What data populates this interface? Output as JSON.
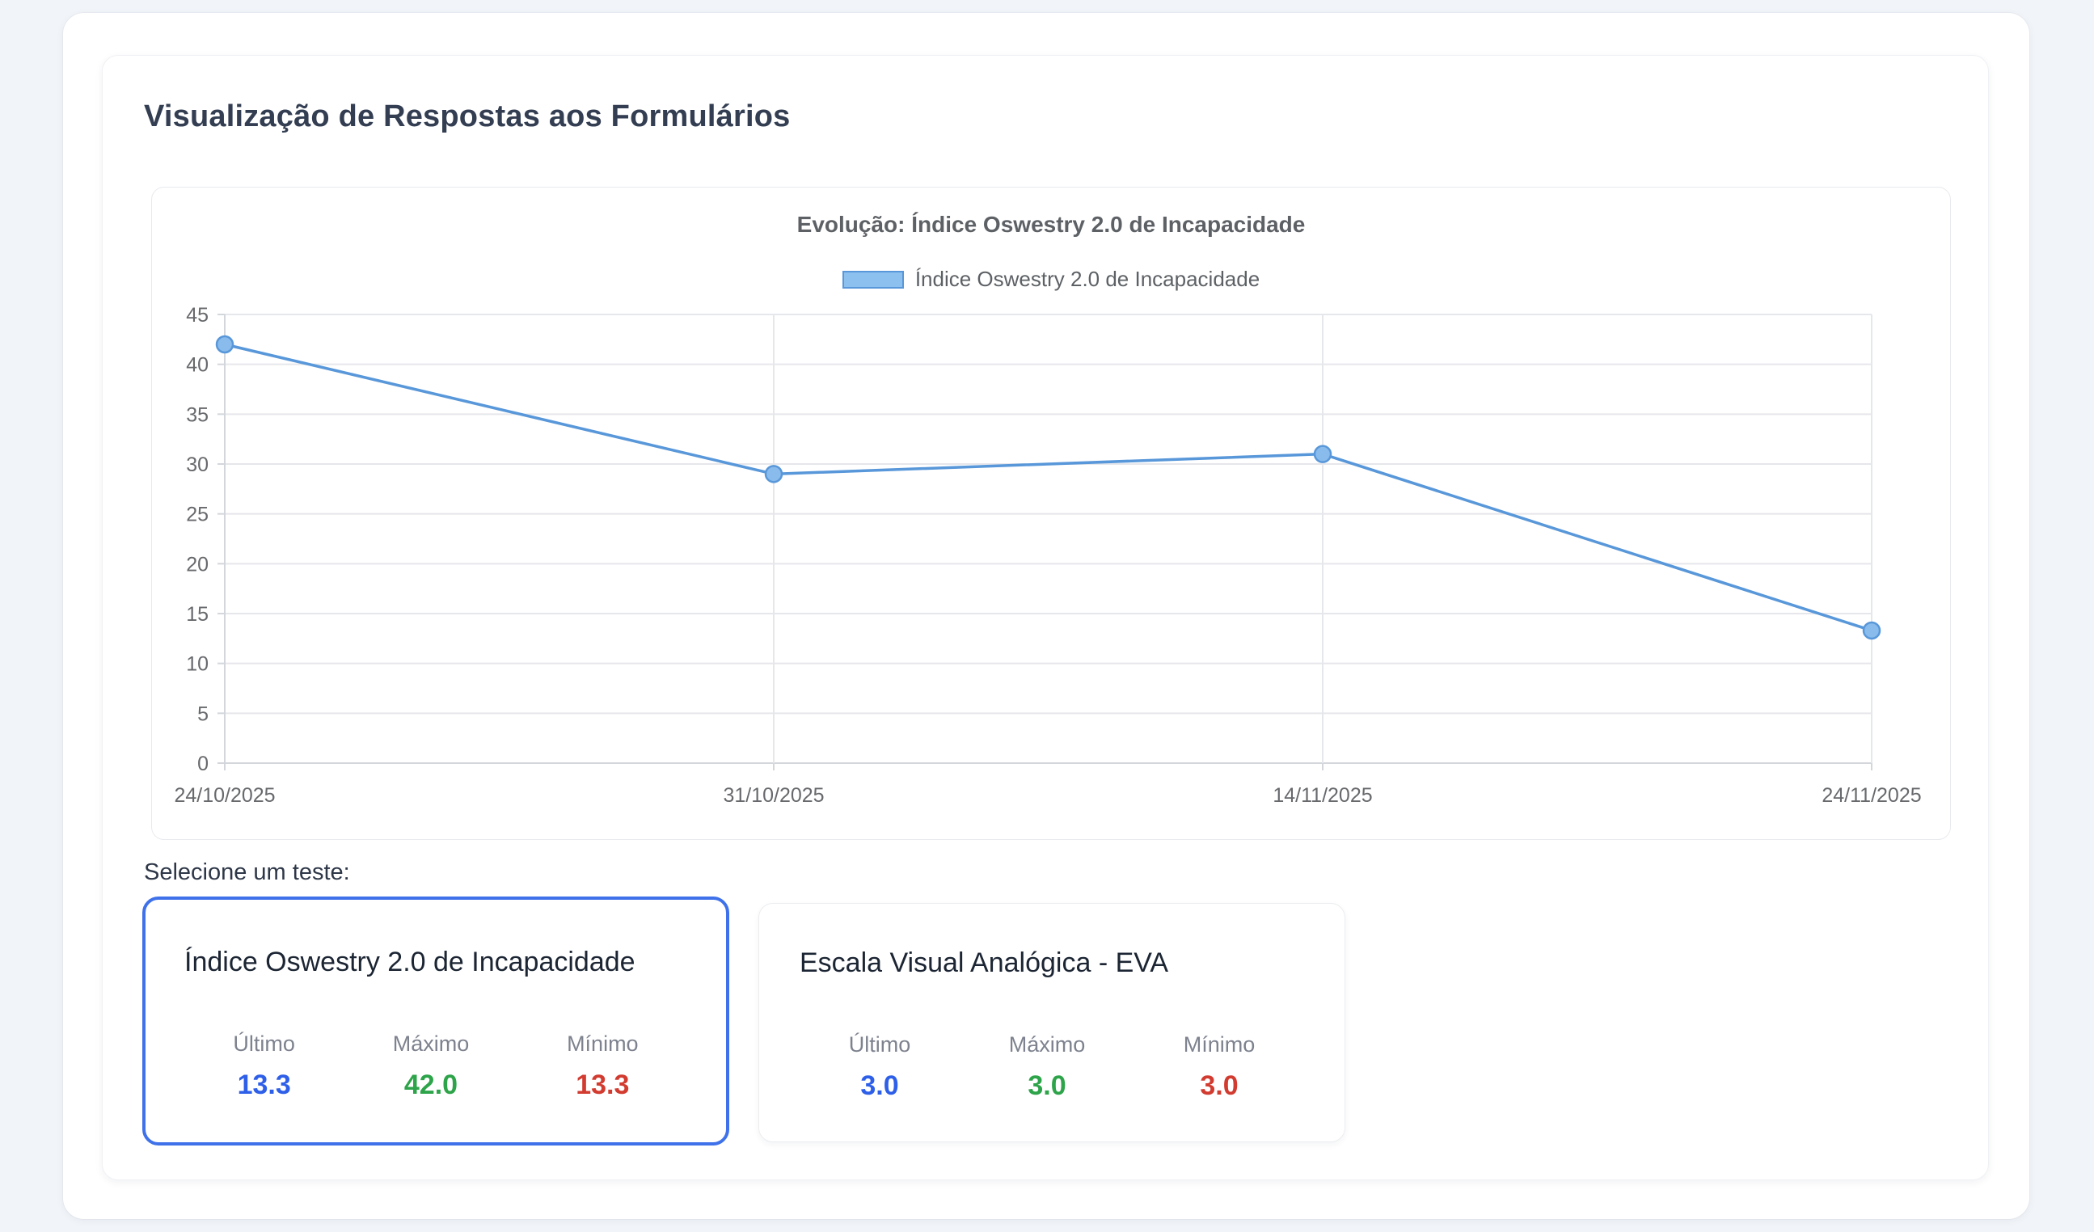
{
  "page": {
    "title": "Visualização de Respostas aos Formulários"
  },
  "chart_data": {
    "type": "line",
    "title": "Evolução: Índice Oswestry 2.0 de Incapacidade",
    "legend_entries": [
      "Índice Oswestry 2.0 de Incapacidade"
    ],
    "legend_position": "top",
    "categories": [
      "24/10/2025",
      "31/10/2025",
      "14/11/2025",
      "24/11/2025"
    ],
    "series": [
      {
        "name": "Índice Oswestry 2.0 de Incapacidade",
        "values": [
          42,
          29,
          31,
          13.3
        ]
      }
    ],
    "xlabel": "",
    "ylabel": "",
    "ylim": [
      0,
      45
    ],
    "y_ticks": [
      0,
      5,
      10,
      15,
      20,
      25,
      30,
      35,
      40,
      45
    ],
    "grid": true,
    "colors": {
      "line": "#5897d9",
      "point_fill": "#89bcec",
      "legend_fill": "#8cc0ee",
      "gridline": "#e6e7eb",
      "axis_line": "#d3d6db",
      "tick_text": "#67696c"
    }
  },
  "selector": {
    "label": "Selecione um teste:",
    "selected_border": "#3e71ea",
    "stat_labels": [
      "Último",
      "Máximo",
      "Mínimo"
    ],
    "stat_colors": [
      "#2e5fe8",
      "#2ea44a",
      "#d23b30"
    ],
    "cards": [
      {
        "title": "Índice Oswestry 2.0 de Incapacidade",
        "selected": true,
        "values": [
          "13.3",
          "42.0",
          "13.3"
        ]
      },
      {
        "title": "Escala Visual Analógica - EVA",
        "selected": false,
        "values": [
          "3.0",
          "3.0",
          "3.0"
        ]
      }
    ]
  }
}
